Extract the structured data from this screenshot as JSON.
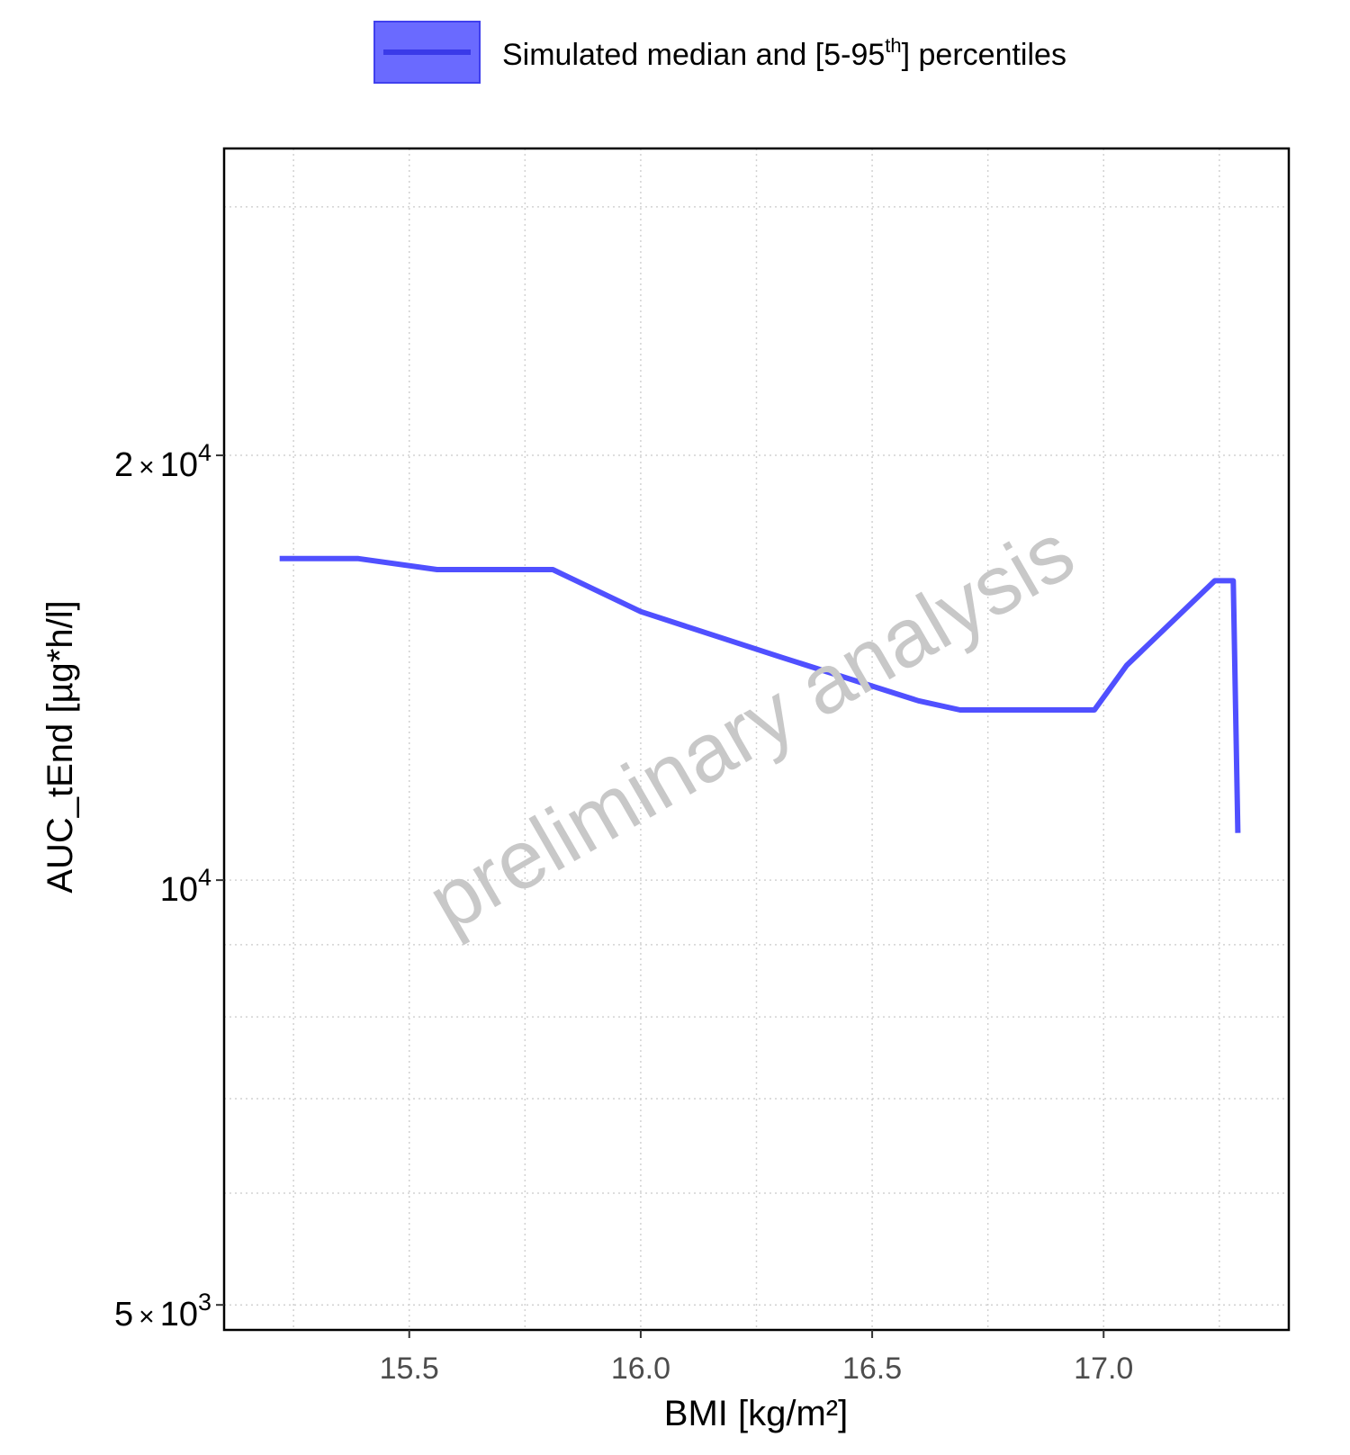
{
  "chart_data": {
    "type": "line",
    "xlabel": "BMI [kg/m²]",
    "ylabel": "AUC_tEnd [µg*h/l]",
    "y_scale": "log",
    "xlim": [
      15.1,
      17.4
    ],
    "ylim": [
      4800,
      33000
    ],
    "x_ticks": [
      15.5,
      16.0,
      16.5,
      17.0
    ],
    "x_tick_labels": [
      "15.5",
      "16.0",
      "16.5",
      "17.0"
    ],
    "y_ticks": [
      {
        "value": 20000,
        "mantissa": "2",
        "times": "×",
        "base": "10",
        "exp": "4"
      },
      {
        "value": 10000,
        "mantissa": "",
        "times": "",
        "base": "10",
        "exp": "4"
      },
      {
        "value": 5000,
        "mantissa": "5",
        "times": "×",
        "base": "10",
        "exp": "3"
      }
    ],
    "y_minor_gridlines": [
      6000,
      7000,
      8000,
      9000,
      30000
    ],
    "grid": true,
    "legend": {
      "position": "top",
      "label_parts": [
        "Simulated median and [5-95",
        "th",
        "] percentiles"
      ],
      "color": "#5050FF"
    },
    "series": [
      {
        "name": "Simulated median and [5-95th] percentiles",
        "color": "#5050FF",
        "x": [
          15.22,
          15.39,
          15.56,
          15.81,
          16.0,
          16.3,
          16.6,
          16.69,
          16.98,
          17.05,
          17.24,
          17.28,
          17.29
        ],
        "y": [
          16900,
          16900,
          16600,
          16600,
          15500,
          14400,
          13400,
          13200,
          13200,
          14200,
          16300,
          16300,
          10800
        ]
      }
    ],
    "watermark": "preliminary analysis"
  }
}
